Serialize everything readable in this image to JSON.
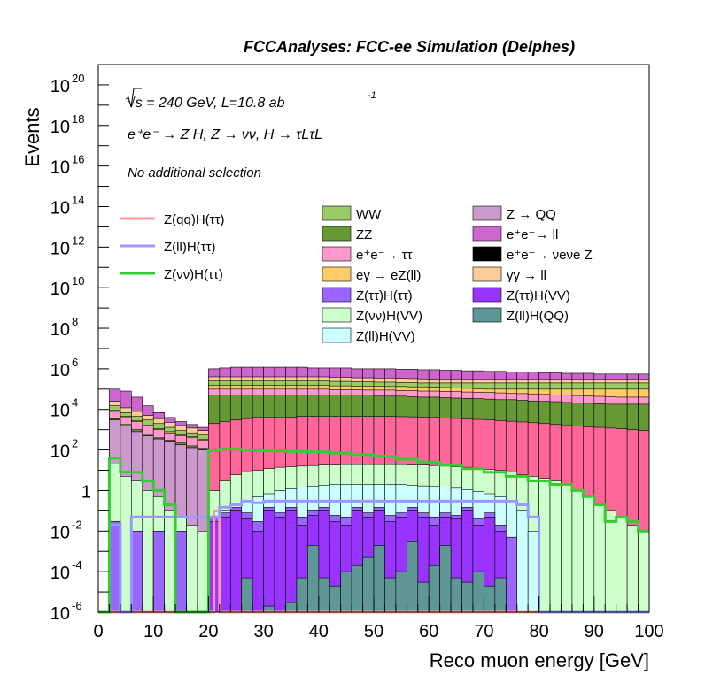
{
  "chart_data": {
    "type": "bar",
    "stacked": true,
    "log_y": true,
    "title": "FCCAnalyses: FCC-ee Simulation (Delphes)",
    "annotations": {
      "energy": "√s = 240 GeV, L=10.8 ab",
      "energy_sup": "-1",
      "process": "e⁺e⁻ → Z H, Z → νν, H → τLτL",
      "selection": "No additional selection"
    },
    "xlabel": "Reco muon energy [GeV]",
    "ylabel": "Events",
    "xlim": [
      0,
      100
    ],
    "ylim": [
      1e-06,
      1e+21
    ],
    "x_ticks": [
      "0",
      "10",
      "20",
      "30",
      "40",
      "50",
      "60",
      "70",
      "80",
      "90",
      "100"
    ],
    "y_ticks": [
      {
        "base": "10",
        "exp": "-6"
      },
      {
        "base": "10",
        "exp": "-4"
      },
      {
        "base": "10",
        "exp": "-2"
      },
      {
        "base": "1",
        "exp": ""
      },
      {
        "base": "10",
        "exp": "2"
      },
      {
        "base": "10",
        "exp": "4"
      },
      {
        "base": "10",
        "exp": "6"
      },
      {
        "base": "10",
        "exp": "8"
      },
      {
        "base": "10",
        "exp": "10"
      },
      {
        "base": "10",
        "exp": "12"
      },
      {
        "base": "10",
        "exp": "14"
      },
      {
        "base": "10",
        "exp": "16"
      },
      {
        "base": "10",
        "exp": "18"
      },
      {
        "base": "10",
        "exp": "20"
      }
    ],
    "bin_width": 2,
    "stack_boundaries": [
      {
        "name": "Z(ll)H(QQ)",
        "color": "#5f9696",
        "top": {
          "20": 1e-06,
          "26": 5e-05,
          "30": 2e-06,
          "34": 3e-06,
          "36": 5e-05,
          "38": 0.002,
          "40": 5e-05,
          "42": 2e-05,
          "44": 0.0001,
          "46": 0.0002,
          "48": 0.0005,
          "50": 0.002,
          "52": 5e-05,
          "54": 0.0001,
          "56": 0.003,
          "58": 3e-05,
          "60": 0.0002,
          "62": 0.002,
          "64": 5e-05,
          "66": 3e-05,
          "68": 0.0001,
          "70": 2e-05,
          "72": 5e-05,
          "74": 1e-06
        }
      },
      {
        "name": "Z(ττ)H(VV)",
        "color": "#9933ff",
        "top": {
          "20": 0.03,
          "22": 0.05,
          "24": 0.1,
          "26": 0.04,
          "28": 0.01,
          "30": 0.1,
          "32": 0.05,
          "34": 0.1,
          "36": 0.02,
          "38": 0.06,
          "40": 0.1,
          "42": 0.03,
          "44": 0.02,
          "46": 0.1,
          "48": 0.05,
          "50": 0.1,
          "52": 0.03,
          "54": 0.05,
          "56": 0.1,
          "58": 0.05,
          "60": 0.02,
          "62": 0.05,
          "64": 0.04,
          "66": 0.1,
          "68": 0.02,
          "70": 0.05,
          "72": 0.01,
          "74": 1e-06
        }
      },
      {
        "name": "Z(ττ)H(ττ)",
        "color": "#9966ff",
        "top": {
          "2": 0.03,
          "4": 1e-06,
          "6": 0.01,
          "8": 1e-06,
          "10": 0.01,
          "12": 1e-06,
          "14": 0.01,
          "16": 1e-06,
          "20": 0.05,
          "22": 0.08,
          "24": 0.15,
          "26": 0.08,
          "28": 0.03,
          "30": 0.15,
          "32": 0.08,
          "34": 0.15,
          "36": 0.05,
          "38": 0.1,
          "40": 0.15,
          "42": 0.06,
          "44": 0.05,
          "46": 0.15,
          "48": 0.08,
          "50": 0.15,
          "52": 0.06,
          "54": 0.08,
          "56": 0.15,
          "58": 0.08,
          "60": 0.05,
          "62": 0.08,
          "64": 0.06,
          "66": 0.15,
          "68": 0.04,
          "70": 0.08,
          "72": 0.02,
          "74": 0.005,
          "76": 1e-06
        }
      },
      {
        "name": "Z(ll)H(VV)",
        "color": "#ccffff",
        "top": {
          "0": 1e-06,
          "2": 0.03,
          "4": 1e-06,
          "6": 0.01,
          "8": 1e-06,
          "10": 0.01,
          "12": 1e-06,
          "14": 0.01,
          "16": 1e-06,
          "20": 0.05,
          "22": 0.1,
          "24": 0.2,
          "26": 0.3,
          "28": 0.5,
          "30": 0.7,
          "32": 1.0,
          "34": 1.2,
          "36": 1.5,
          "38": 1.6,
          "40": 1.8,
          "42": 2.0,
          "44": 2.0,
          "46": 2.0,
          "48": 2.0,
          "50": 2.0,
          "52": 2.0,
          "54": 2.0,
          "56": 1.8,
          "58": 1.7,
          "60": 1.6,
          "62": 1.5,
          "64": 1.3,
          "66": 1.1,
          "68": 0.9,
          "70": 0.7,
          "72": 0.5,
          "74": 0.3,
          "76": 0.1,
          "78": 0.01,
          "80": 1e-06
        }
      },
      {
        "name": "Z(νν)H(VV)",
        "color": "#ccffcc",
        "top": {
          "0": 1e-06,
          "2": 20,
          "4": 5,
          "6": 3,
          "8": 1,
          "10": 0.5,
          "12": 0.1,
          "14": 0.05,
          "16": 0.02,
          "18": 0.01,
          "20": 1,
          "22": 3,
          "24": 6,
          "26": 8,
          "28": 10,
          "30": 12,
          "32": 14,
          "34": 15,
          "36": 16,
          "38": 17,
          "40": 18,
          "42": 18,
          "44": 19,
          "46": 19,
          "48": 19,
          "50": 19,
          "52": 19,
          "54": 19,
          "56": 18,
          "58": 18,
          "60": 17,
          "62": 16,
          "64": 15,
          "66": 14,
          "68": 12,
          "70": 11,
          "72": 10,
          "74": 8,
          "76": 6,
          "78": 5,
          "80": 4,
          "82": 3,
          "84": 2,
          "86": 1,
          "88": 0.5,
          "90": 0.2,
          "92": 0.1,
          "94": 0.05,
          "96": 0.02,
          "98": 0.01
        }
      },
      {
        "name": "Z → QQ",
        "color": "#cc99cc",
        "top": {
          "0": 1e-06,
          "2": 3000,
          "4": 1500,
          "6": 800,
          "8": 500,
          "10": 350,
          "12": 250,
          "14": 180,
          "16": 130,
          "18": 100,
          "20": 1
        }
      },
      {
        "name": "e⁺e⁻ → νeνe Z",
        "color": "#ff6699",
        "top": {
          "0": 1e-06,
          "2": 3000,
          "4": 1500,
          "6": 800,
          "8": 500,
          "10": 350,
          "12": 250,
          "14": 180,
          "16": 130,
          "18": 100,
          "20": 2000,
          "22": 2500,
          "24": 3000,
          "26": 3500,
          "28": 4000,
          "30": 4000,
          "32": 4000,
          "34": 4200,
          "36": 4500,
          "38": 4500,
          "40": 4500,
          "42": 4500,
          "44": 4500,
          "46": 4500,
          "48": 4500,
          "50": 4500,
          "52": 4500,
          "54": 4400,
          "56": 4300,
          "58": 4200,
          "60": 4000,
          "62": 3800,
          "64": 3600,
          "66": 3400,
          "68": 3200,
          "70": 3000,
          "72": 2800,
          "74": 2600,
          "76": 2400,
          "78": 2200,
          "80": 2000,
          "82": 1800,
          "84": 1600,
          "86": 1500,
          "88": 1400,
          "90": 1300,
          "92": 1200,
          "94": 1100,
          "96": 1000,
          "98": 900
        }
      },
      {
        "name": "ZZ",
        "color": "#669933",
        "top": {
          "0": 1e-06,
          "2": 3500,
          "4": 1800,
          "6": 1000,
          "8": 600,
          "10": 400,
          "12": 300,
          "14": 220,
          "16": 160,
          "18": 120,
          "20": 50000,
          "22": 50000,
          "24": 50000,
          "26": 50000,
          "28": 50000,
          "30": 50000,
          "32": 50000,
          "34": 50000,
          "36": 50000,
          "38": 50000,
          "40": 50000,
          "42": 50000,
          "44": 50000,
          "46": 50000,
          "48": 50000,
          "50": 45000,
          "52": 45000,
          "54": 45000,
          "56": 42000,
          "58": 40000,
          "60": 40000,
          "62": 38000,
          "64": 36000,
          "66": 35000,
          "68": 34000,
          "70": 32000,
          "72": 30000,
          "74": 30000,
          "76": 28000,
          "78": 26000,
          "80": 25000,
          "82": 24000,
          "84": 22000,
          "86": 21000,
          "88": 20000,
          "90": 19000,
          "92": 18000,
          "94": 18000,
          "96": 18000,
          "98": 18000
        }
      },
      {
        "name": "e⁺e⁻→ ττ",
        "color": "#ff99cc",
        "top": {
          "0": 1e-06,
          "2": 8000,
          "4": 4000,
          "6": 2500,
          "8": 1500,
          "10": 1000,
          "12": 700,
          "14": 500,
          "16": 400,
          "18": 300,
          "20": 100000,
          "22": 100000,
          "24": 100000,
          "26": 100000,
          "28": 100000,
          "30": 100000,
          "32": 100000,
          "34": 100000,
          "36": 100000,
          "38": 100000,
          "40": 100000,
          "42": 95000,
          "44": 95000,
          "46": 95000,
          "48": 90000,
          "50": 90000,
          "52": 90000,
          "54": 85000,
          "56": 85000,
          "58": 80000,
          "60": 80000,
          "62": 78000,
          "64": 75000,
          "66": 72000,
          "68": 70000,
          "70": 68000,
          "72": 65000,
          "74": 62000,
          "76": 60000,
          "78": 58000,
          "80": 55000,
          "82": 52000,
          "84": 50000,
          "86": 48000,
          "88": 46000,
          "90": 44000,
          "92": 42000,
          "94": 40000,
          "96": 40000,
          "98": 40000
        }
      },
      {
        "name": "eγ → eZ(ll)",
        "color": "#ffcc66",
        "top": {
          "0": 1e-06,
          "2": 9000,
          "4": 4500,
          "6": 2800,
          "8": 1700,
          "10": 1100,
          "12": 800,
          "14": 560,
          "16": 450,
          "18": 340,
          "20": 150000,
          "22": 150000,
          "24": 150000,
          "26": 150000,
          "28": 150000,
          "30": 150000,
          "32": 150000,
          "34": 150000,
          "36": 150000,
          "38": 150000,
          "40": 150000,
          "42": 145000,
          "44": 145000,
          "46": 140000,
          "48": 140000,
          "50": 140000,
          "52": 135000,
          "54": 135000,
          "56": 130000,
          "58": 130000,
          "60": 125000,
          "62": 120000,
          "64": 115000,
          "66": 110000,
          "68": 105000,
          "70": 100000,
          "72": 100000,
          "74": 100000,
          "76": 100000,
          "78": 100000,
          "80": 100000,
          "82": 100000,
          "84": 100000,
          "86": 100000,
          "88": 100000,
          "90": 100000,
          "92": 100000,
          "94": 100000,
          "96": 100000,
          "98": 100000
        }
      },
      {
        "name": "WW",
        "color": "#99cc66",
        "top": {
          "0": 1e-06,
          "2": 15000,
          "4": 7000,
          "6": 4500,
          "8": 3000,
          "10": 2000,
          "12": 1300,
          "14": 900,
          "16": 700,
          "18": 550,
          "20": 250000,
          "22": 250000,
          "24": 250000,
          "26": 250000,
          "28": 250000,
          "30": 250000,
          "32": 250000,
          "34": 250000,
          "36": 250000,
          "38": 250000,
          "40": 250000,
          "42": 240000,
          "44": 240000,
          "46": 230000,
          "48": 230000,
          "50": 220000,
          "52": 220000,
          "54": 210000,
          "56": 210000,
          "58": 200000,
          "60": 200000,
          "62": 200000,
          "64": 200000,
          "66": 200000,
          "68": 200000,
          "70": 200000,
          "72": 200000,
          "74": 200000,
          "76": 200000,
          "78": 200000,
          "80": 200000,
          "82": 200000,
          "84": 200000,
          "86": 200000,
          "88": 200000,
          "90": 200000,
          "92": 200000,
          "94": 200000,
          "96": 200000,
          "98": 200000
        }
      },
      {
        "name": "γγ → ll",
        "color": "#ffcc99",
        "top": {
          "0": 1e-06,
          "2": 25000,
          "4": 12000,
          "6": 8000,
          "8": 5000,
          "10": 3500,
          "12": 2300,
          "14": 1600,
          "16": 1200,
          "18": 900,
          "20": 400000,
          "22": 400000,
          "24": 400000,
          "26": 400000,
          "28": 400000,
          "30": 400000,
          "32": 400000,
          "34": 400000,
          "36": 400000,
          "38": 400000,
          "40": 400000,
          "42": 380000,
          "44": 380000,
          "46": 360000,
          "48": 360000,
          "50": 350000,
          "52": 350000,
          "54": 340000,
          "56": 330000,
          "58": 320000,
          "60": 310000,
          "62": 300000,
          "64": 300000,
          "66": 300000,
          "68": 300000,
          "70": 300000,
          "72": 300000,
          "74": 300000,
          "76": 300000,
          "78": 300000,
          "80": 300000,
          "82": 300000,
          "84": 300000,
          "86": 300000,
          "88": 300000,
          "90": 300000,
          "92": 300000,
          "94": 300000,
          "96": 300000,
          "98": 300000
        }
      },
      {
        "name": "e⁺e⁻→ ll",
        "color": "#cc66cc",
        "top": {
          "0": 1e-06,
          "2": 100000,
          "4": 80000,
          "6": 40000,
          "8": 15000,
          "10": 7000,
          "12": 4000,
          "14": 2500,
          "16": 1800,
          "18": 1300,
          "20": 1000000,
          "22": 1100000,
          "24": 1200000,
          "26": 1200000,
          "28": 1200000,
          "30": 1200000,
          "32": 1200000,
          "34": 1200000,
          "36": 1200000,
          "38": 1100000,
          "40": 1100000,
          "42": 1100000,
          "44": 1100000,
          "46": 1000000,
          "48": 1000000,
          "50": 1000000,
          "52": 1000000,
          "54": 950000,
          "56": 950000,
          "58": 900000,
          "60": 900000,
          "62": 850000,
          "64": 850000,
          "66": 800000,
          "68": 800000,
          "70": 750000,
          "72": 750000,
          "74": 700000,
          "76": 700000,
          "78": 700000,
          "80": 650000,
          "82": 650000,
          "84": 600000,
          "86": 600000,
          "88": 600000,
          "90": 550000,
          "92": 550000,
          "94": 550000,
          "96": 550000,
          "98": 550000
        }
      }
    ],
    "signal_lines": [
      {
        "name": "Z(qq)H(ττ)",
        "color": "#ff9999",
        "x": [
          0,
          20,
          20,
          21,
          21,
          22,
          22,
          100
        ],
        "y": [
          1e-06,
          1e-06,
          1e-06,
          1e-06,
          0.1,
          0.1,
          1e-06,
          1e-06
        ]
      },
      {
        "name": "Z(ll)H(ττ)",
        "color": "#9999ff",
        "x": [
          0,
          2,
          2,
          4,
          4,
          6,
          6,
          20,
          20,
          22,
          22,
          24,
          24,
          26,
          26,
          28,
          28,
          30,
          30,
          76,
          76,
          78,
          78,
          80,
          80,
          100
        ],
        "y": [
          1e-06,
          1e-06,
          0.02,
          0.02,
          1e-06,
          1e-06,
          0.05,
          0.05,
          0.05,
          0.05,
          0.15,
          0.15,
          0.2,
          0.2,
          0.3,
          0.3,
          0.25,
          0.25,
          0.3,
          0.3,
          0.2,
          0.2,
          0.05,
          0.05,
          1e-06,
          1e-06
        ]
      },
      {
        "name": "Z(νν)H(ττ)",
        "color": "#33cc33",
        "x": [
          0,
          2,
          2,
          4,
          4,
          6,
          6,
          8,
          8,
          10,
          10,
          12,
          12,
          14,
          14,
          20,
          20,
          22,
          22,
          26,
          26,
          30,
          30,
          34,
          34,
          38,
          38,
          42,
          42,
          46,
          46,
          50,
          50,
          54,
          54,
          58,
          58,
          62,
          62,
          66,
          66,
          70,
          70,
          74,
          74,
          78,
          78,
          82,
          82,
          86,
          86,
          88,
          88,
          90,
          90,
          92,
          92,
          94,
          94,
          96,
          96,
          98,
          98,
          100
        ],
        "y": [
          1e-06,
          1e-06,
          40,
          40,
          8,
          8,
          8,
          8,
          3,
          3,
          1,
          1,
          0.2,
          0.2,
          1e-06,
          1e-06,
          100,
          100,
          110,
          110,
          100,
          100,
          90,
          90,
          85,
          85,
          80,
          80,
          70,
          70,
          60,
          60,
          50,
          50,
          35,
          35,
          25,
          25,
          18,
          18,
          12,
          12,
          8,
          8,
          5,
          5,
          3,
          3,
          2,
          2,
          1,
          1,
          0.5,
          0.5,
          0.2,
          0.2,
          0.03,
          0.03,
          0.05,
          0.05,
          0.03,
          0.03,
          0.01,
          0.01
        ]
      }
    ],
    "legend_lines": [
      "Z(qq)H(ττ)",
      "Z(ll)H(ττ)",
      "Z(νν)H(ττ)"
    ],
    "legend_fill_col1": [
      "WW",
      "ZZ",
      "e⁺e⁻→ ττ",
      "eγ → eZ(ll)",
      "Z(ττ)H(ττ)",
      "Z(νν)H(VV)",
      "Z(ll)H(VV)"
    ],
    "legend_fill_col2": [
      "Z → QQ",
      "e⁺e⁻→ ll",
      "e⁺e⁻→ νeνe Z",
      "γγ → ll",
      "Z(ττ)H(VV)",
      "Z(ll)H(QQ)"
    ]
  }
}
